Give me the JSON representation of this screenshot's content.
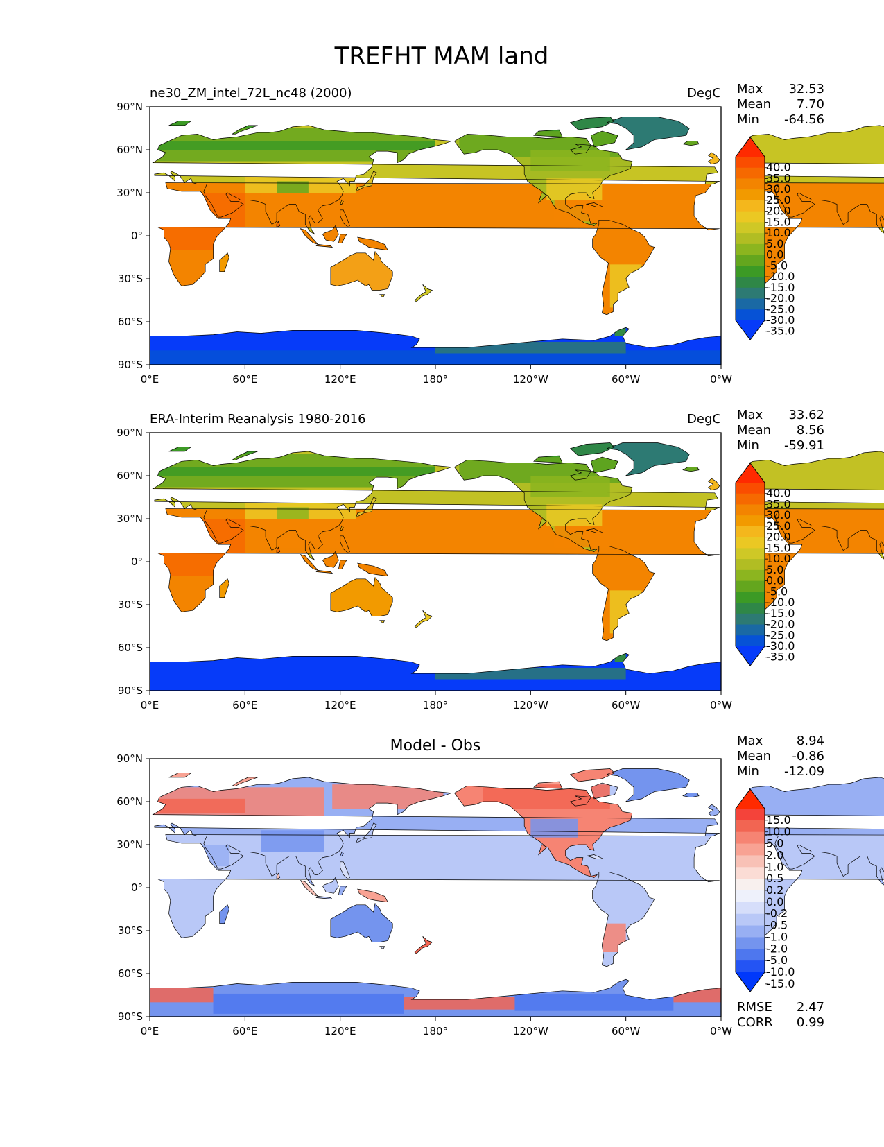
{
  "title": "TREFHT MAM land",
  "lat_ticks": [
    "90°N",
    "60°N",
    "30°N",
    "0°",
    "30°S",
    "60°S",
    "90°S"
  ],
  "lon_ticks": [
    "0°E",
    "60°E",
    "120°E",
    "180°",
    "120°W",
    "60°W",
    "0°W"
  ],
  "panels": [
    {
      "left_title": "ne30_ZM_intel_72L_nc48 (2000)",
      "center_title": "",
      "units": "DegC",
      "stats": [
        {
          "label": "Max",
          "value": "32.53"
        },
        {
          "label": "Mean",
          "value": "7.70"
        },
        {
          "label": "Min",
          "value": "-64.56"
        }
      ],
      "colorbar": {
        "ticks": [
          "40.0",
          "35.0",
          "30.0",
          "25.0",
          "20.0",
          "15.0",
          "10.0",
          "5.0",
          "0.0",
          "-5.0",
          "-10.0",
          "-15.0",
          "-20.0",
          "-25.0",
          "-30.0",
          "-35.0"
        ],
        "colors": [
          "#ff2a00",
          "#fa4d00",
          "#f66900",
          "#f38400",
          "#f29a00",
          "#f4b71c",
          "#ebc823",
          "#cfc826",
          "#b1bd23",
          "#8cb51f",
          "#64a61e",
          "#3c9a25",
          "#2f8747",
          "#2d7a73",
          "#1a69a4",
          "#0652d6",
          "#063bf9"
        ]
      }
    },
    {
      "left_title": "ERA-Interim Reanalysis 1980-2016",
      "center_title": "",
      "units": "DegC",
      "stats": [
        {
          "label": "Max",
          "value": "33.62"
        },
        {
          "label": "Mean",
          "value": "8.56"
        },
        {
          "label": "Min",
          "value": "-59.91"
        }
      ],
      "colorbar": {
        "ticks": [
          "40.0",
          "35.0",
          "30.0",
          "25.0",
          "20.0",
          "15.0",
          "10.0",
          "5.0",
          "0.0",
          "-5.0",
          "-10.0",
          "-15.0",
          "-20.0",
          "-25.0",
          "-30.0",
          "-35.0"
        ],
        "colors": [
          "#ff2a00",
          "#fa4d00",
          "#f66900",
          "#f38400",
          "#f29a00",
          "#f4b71c",
          "#ebc823",
          "#cfc826",
          "#b1bd23",
          "#8cb51f",
          "#64a61e",
          "#3c9a25",
          "#2f8747",
          "#2d7a73",
          "#1a69a4",
          "#0652d6",
          "#063bf9"
        ]
      }
    },
    {
      "left_title": "",
      "center_title": "Model - Obs",
      "units": "",
      "stats": [
        {
          "label": "Max",
          "value": "8.94"
        },
        {
          "label": "Mean",
          "value": "-0.86"
        },
        {
          "label": "Min",
          "value": "-12.09"
        }
      ],
      "extra_stats": [
        {
          "label": "RMSE",
          "value": "2.47"
        },
        {
          "label": "CORR",
          "value": "0.99"
        }
      ],
      "colorbar": {
        "ticks": [
          "15.0",
          "10.0",
          "5.0",
          "2.0",
          "1.0",
          "0.5",
          "0.2",
          "0.0",
          "-0.2",
          "-0.5",
          "-1.0",
          "-2.0",
          "-5.0",
          "-10.0",
          "-15.0"
        ],
        "colors": [
          "#ff2a00",
          "#f4433a",
          "#f26552",
          "#f68473",
          "#f8a293",
          "#f8c1b6",
          "#fbdcd5",
          "#f8f0ee",
          "#eef1fb",
          "#d6defa",
          "#b9c8f7",
          "#98aff3",
          "#7494ee",
          "#4e77ee",
          "#2454f4",
          "#0038fb"
        ]
      }
    }
  ]
}
